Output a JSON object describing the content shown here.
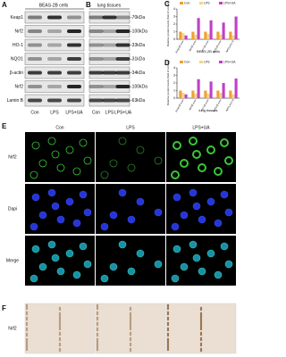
{
  "blots": [
    {
      "label": "A",
      "title": "BEAS-2B cells",
      "rows": [
        "Keap1",
        "Nrf2",
        "HO-1",
        "NQO1",
        "β-actin",
        "Nrf2",
        "Lamin B"
      ],
      "lanes": [
        "Con",
        "LPS",
        "LPS+UA"
      ]
    },
    {
      "label": "B",
      "title": "lung tissues",
      "markers": [
        "-70kDa",
        "-100kDa",
        "-33kDa",
        "-31kDa",
        "-34kDa",
        "-100kDa",
        "-63kDa"
      ],
      "lanes": [
        "Con",
        "LPS",
        "LPS+UA"
      ]
    }
  ],
  "chart_data": [
    {
      "type": "bar",
      "panel_label": "C",
      "y_label": "Relative protein levels (fold of control)",
      "x_label": "BEAS-2B cells",
      "categories": [
        "Keap1/β-actin",
        "Nrf2/β-actin",
        "HO-1/β-actin",
        "NQO1/β-actin",
        "Nrf2/Lamin B"
      ],
      "series": [
        {
          "name": "Con",
          "color": "#f0a030",
          "values": [
            1,
            1,
            1,
            1,
            1
          ]
        },
        {
          "name": "LPS",
          "color": "#f7d48a",
          "values": [
            0.8,
            0.6,
            0.7,
            0.6,
            0.5
          ]
        },
        {
          "name": "LPS+UA",
          "color": "#c040c8",
          "values": [
            0.5,
            2.8,
            2.5,
            2.2,
            3
          ]
        }
      ],
      "ylim": [
        0,
        4
      ],
      "yticks": [
        0,
        1,
        2,
        3,
        4
      ],
      "legend": "top-left"
    },
    {
      "type": "bar",
      "panel_label": "D",
      "y_label": "Relative protein levels (fold of control)",
      "x_label": "lung tissues",
      "categories": [
        "Keap1/β-actin",
        "Nrf2/β-actin",
        "HO-1/β-actin",
        "NQO1/β-actin",
        "Nrf2/Lamin B"
      ],
      "series": [
        {
          "name": "Con",
          "color": "#f0a030",
          "values": [
            1,
            1,
            1,
            1,
            1
          ]
        },
        {
          "name": "LPS",
          "color": "#f7d48a",
          "values": [
            0.7,
            0.6,
            0.6,
            0.7,
            0.5
          ]
        },
        {
          "name": "LPS+UA",
          "color": "#c040c8",
          "values": [
            0.5,
            2.5,
            2.2,
            2,
            2.6
          ]
        }
      ],
      "ylim": [
        0,
        4
      ],
      "yticks": [
        0,
        1,
        2,
        3,
        4
      ],
      "legend": "top-left"
    }
  ],
  "microscopy": {
    "label": "E",
    "columns": [
      "Con",
      "LPS",
      "LPS+UA"
    ],
    "rows": [
      "Nrf2",
      "Dapi",
      "Merge"
    ]
  },
  "histology": {
    "label": "F",
    "rows": [
      "Nrf2"
    ]
  }
}
